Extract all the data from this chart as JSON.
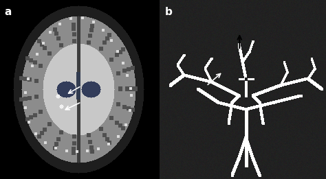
{
  "figsize": [
    4.74,
    2.61
  ],
  "dpi": 100,
  "panel_a_label": "a",
  "panel_b_label": "b",
  "label_color": "white",
  "label_fontsize": 11,
  "label_fontweight": "bold",
  "background_color": "black",
  "panel_a_bg": [
    0,
    0,
    0
  ],
  "panel_b_bg": [
    30,
    30,
    30
  ],
  "arrow_color_a": [
    255,
    255,
    255
  ],
  "arrow_color_b_white": [
    255,
    255,
    255
  ],
  "arrow_color_b_black": [
    0,
    0,
    0
  ]
}
